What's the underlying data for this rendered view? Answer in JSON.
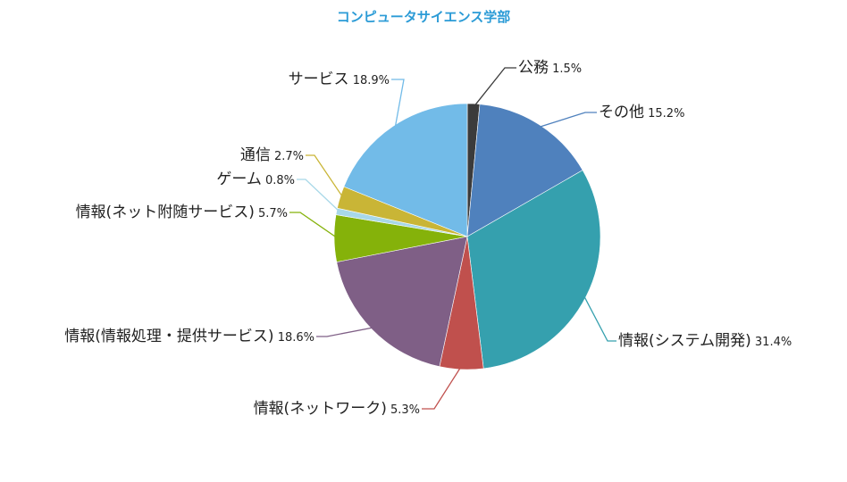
{
  "chart_data": {
    "type": "pie",
    "title": "コンピュータサイエンス学部",
    "title_color": "#2b9bd6",
    "start": "top-center",
    "direction": "clockwise",
    "slices": [
      {
        "label": "公務",
        "value": 1.5,
        "value_text": "1.5%",
        "color": "#3b3b3b"
      },
      {
        "label": "その他",
        "value": 15.2,
        "value_text": "15.2%",
        "color": "#4f81bd"
      },
      {
        "label": "情報(システム開発)",
        "value": 31.4,
        "value_text": "31.4%",
        "color": "#35a0ae"
      },
      {
        "label": "情報(ネットワーク)",
        "value": 5.3,
        "value_text": "5.3%",
        "color": "#c0504d"
      },
      {
        "label": "情報(情報処理・提供サービス)",
        "value": 18.6,
        "value_text": "18.6%",
        "color": "#7f5f86"
      },
      {
        "label": "情報(ネット附随サービス)",
        "value": 5.7,
        "value_text": "5.7%",
        "color": "#85b20a"
      },
      {
        "label": "ゲーム",
        "value": 0.8,
        "value_text": "0.8%",
        "color": "#a8d8e8"
      },
      {
        "label": "通信",
        "value": 2.7,
        "value_text": "2.7%",
        "color": "#c9b536"
      },
      {
        "label": "サービス",
        "value": 18.9,
        "value_text": "18.9%",
        "color": "#72bbe8"
      }
    ]
  }
}
